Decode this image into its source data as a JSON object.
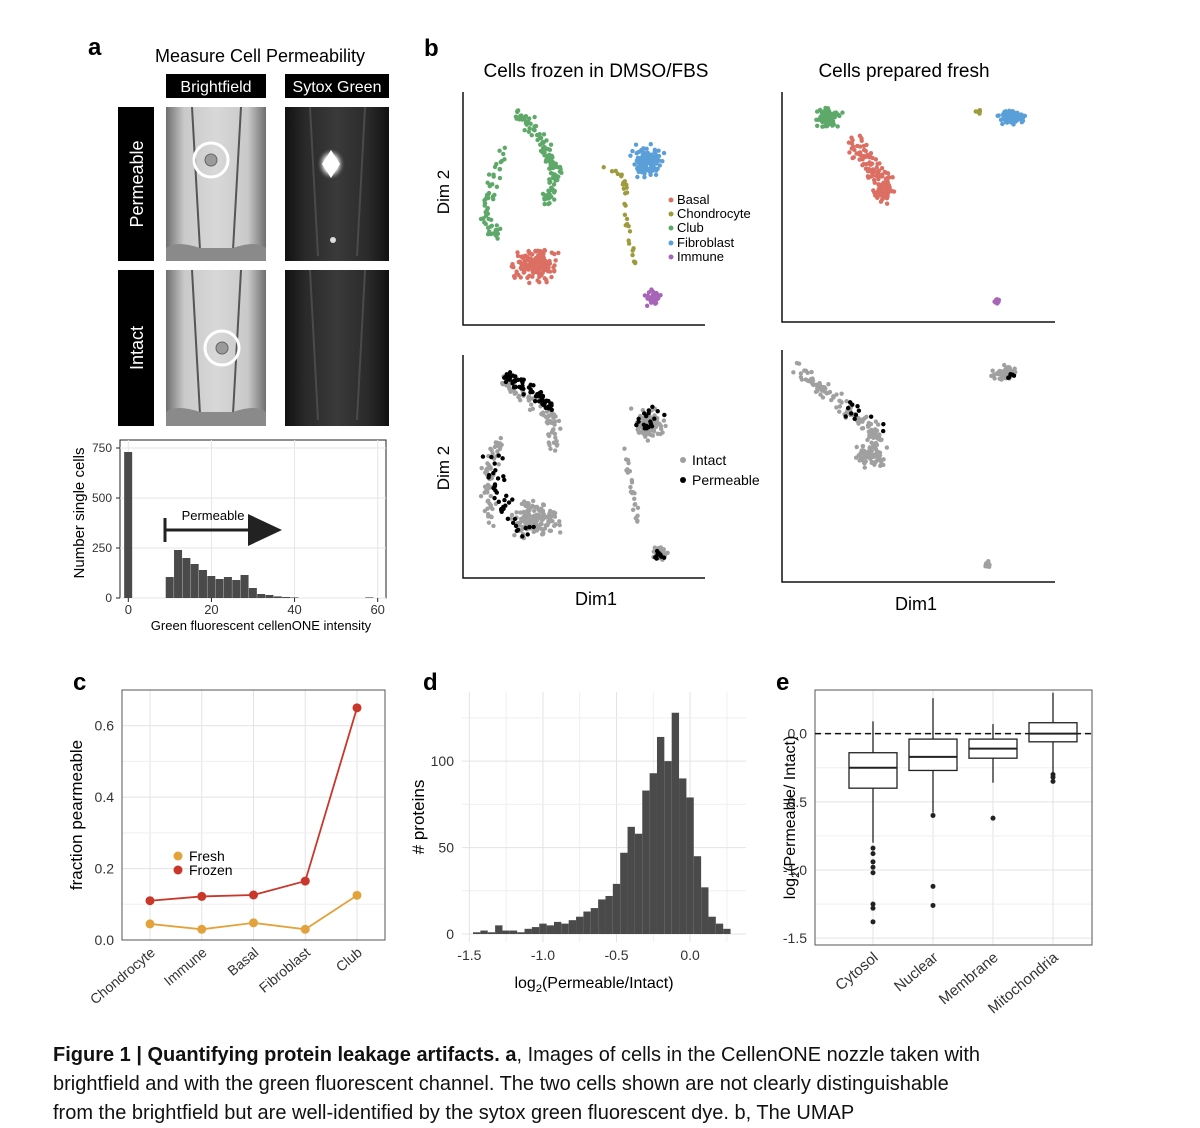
{
  "panel_a": {
    "letter": "a",
    "title": "Measure Cell Permeability",
    "col_labels": [
      "Brightfield",
      "Sytox Green"
    ],
    "row_labels": [
      "Permeable",
      "Intact"
    ],
    "hist": {
      "annotation": "Permeable",
      "ylabel": "Number single cells",
      "xlabel": "Green fluorescent cellenONE intensity"
    }
  },
  "panel_b": {
    "letter": "b",
    "col_titles": [
      "Cells frozen in DMSO/FBS",
      "Cells prepared fresh"
    ],
    "xlabel": "Dim1",
    "ylabel": "Dim 2",
    "cell_type_legend": [
      {
        "label": "Basal",
        "color": "#dc6f63"
      },
      {
        "label": "Chondrocyte",
        "color": "#9e9b3c"
      },
      {
        "label": "Club",
        "color": "#5ea96a"
      },
      {
        "label": "Fibroblast",
        "color": "#5b9fd8"
      },
      {
        "label": "Immune",
        "color": "#a865b8"
      }
    ],
    "perm_legend": [
      {
        "label": "Intact",
        "color": "#a0a0a0"
      },
      {
        "label": "Permeable",
        "color": "#000000"
      }
    ]
  },
  "panel_c": {
    "letter": "c",
    "legend": [
      "Fresh",
      "Frozen"
    ]
  },
  "panel_d": {
    "letter": "d"
  },
  "panel_e": {
    "letter": "e"
  },
  "caption": {
    "bold": "Figure 1 | Quantifying protein leakage artifacts. a",
    "text1": ", Images of cells in the CellenONE nozzle taken with",
    "line2": "brightfield and with the green fluorescent channel. The two cells shown are not clearly distinguishable",
    "line3": "from the brightfield but are well-identified by the sytox green fluorescent dye. b, The UMAP"
  },
  "chart_data": [
    {
      "type": "bar",
      "title": "",
      "xlabel": "Green fluorescent cellenONE intensity",
      "ylabel": "Number single cells",
      "x_ticks": [
        0,
        20,
        40,
        60
      ],
      "y_ticks": [
        0,
        250,
        500,
        750
      ],
      "xlim": [
        -2,
        62
      ],
      "ylim": [
        0,
        750
      ],
      "bin_width": 2,
      "bins": [
        {
          "x": 0,
          "value": 730
        },
        {
          "x": 2,
          "value": 0
        },
        {
          "x": 4,
          "value": 0
        },
        {
          "x": 6,
          "value": 0
        },
        {
          "x": 8,
          "value": 0
        },
        {
          "x": 10,
          "value": 105
        },
        {
          "x": 12,
          "value": 240
        },
        {
          "x": 14,
          "value": 200
        },
        {
          "x": 16,
          "value": 170
        },
        {
          "x": 18,
          "value": 140
        },
        {
          "x": 20,
          "value": 110
        },
        {
          "x": 22,
          "value": 95
        },
        {
          "x": 24,
          "value": 105
        },
        {
          "x": 26,
          "value": 90
        },
        {
          "x": 28,
          "value": 115
        },
        {
          "x": 30,
          "value": 50
        },
        {
          "x": 32,
          "value": 20
        },
        {
          "x": 34,
          "value": 15
        },
        {
          "x": 36,
          "value": 8
        },
        {
          "x": 38,
          "value": 5
        },
        {
          "x": 40,
          "value": 3
        },
        {
          "x": 58,
          "value": 3
        }
      ]
    },
    {
      "type": "line",
      "title": "",
      "xlabel": "",
      "ylabel": "fraction pearmeable",
      "categories": [
        "Chondrocyte",
        "Immune",
        "Basal",
        "Fibroblast",
        "Club"
      ],
      "ylim": [
        0,
        0.7
      ],
      "y_ticks": [
        0.0,
        0.2,
        0.4,
        0.6
      ],
      "series": [
        {
          "name": "Fresh",
          "color": "#e3a33c",
          "values": [
            0.045,
            0.03,
            0.048,
            0.03,
            0.125
          ]
        },
        {
          "name": "Frozen",
          "color": "#c9362a",
          "values": [
            0.11,
            0.122,
            0.126,
            0.165,
            0.65
          ]
        }
      ]
    },
    {
      "type": "bar",
      "title": "",
      "xlabel": "log2(Permeable/Intact)",
      "ylabel": "# proteins",
      "x_ticks": [
        -1.5,
        -1.0,
        -0.5,
        0.0
      ],
      "y_ticks": [
        0,
        50,
        100
      ],
      "xlim": [
        -1.55,
        0.38
      ],
      "ylim": [
        0,
        140
      ],
      "bin_width": 0.05,
      "bins": [
        {
          "x": -1.45,
          "value": 1
        },
        {
          "x": -1.4,
          "value": 2
        },
        {
          "x": -1.35,
          "value": 1
        },
        {
          "x": -1.3,
          "value": 5
        },
        {
          "x": -1.25,
          "value": 2
        },
        {
          "x": -1.2,
          "value": 2
        },
        {
          "x": -1.15,
          "value": 1
        },
        {
          "x": -1.1,
          "value": 3
        },
        {
          "x": -1.05,
          "value": 4
        },
        {
          "x": -1.0,
          "value": 6
        },
        {
          "x": -0.95,
          "value": 5
        },
        {
          "x": -0.9,
          "value": 7
        },
        {
          "x": -0.85,
          "value": 6
        },
        {
          "x": -0.8,
          "value": 8
        },
        {
          "x": -0.75,
          "value": 10
        },
        {
          "x": -0.7,
          "value": 13
        },
        {
          "x": -0.65,
          "value": 15
        },
        {
          "x": -0.6,
          "value": 20
        },
        {
          "x": -0.55,
          "value": 22
        },
        {
          "x": -0.5,
          "value": 29
        },
        {
          "x": -0.45,
          "value": 47
        },
        {
          "x": -0.4,
          "value": 62
        },
        {
          "x": -0.35,
          "value": 58
        },
        {
          "x": -0.3,
          "value": 83
        },
        {
          "x": -0.25,
          "value": 93
        },
        {
          "x": -0.2,
          "value": 114
        },
        {
          "x": -0.15,
          "value": 100
        },
        {
          "x": -0.1,
          "value": 128
        },
        {
          "x": -0.05,
          "value": 90
        },
        {
          "x": 0.0,
          "value": 79
        },
        {
          "x": 0.05,
          "value": 45
        },
        {
          "x": 0.1,
          "value": 27
        },
        {
          "x": 0.15,
          "value": 10
        },
        {
          "x": 0.2,
          "value": 6
        },
        {
          "x": 0.25,
          "value": 3
        }
      ]
    },
    {
      "type": "box",
      "title": "",
      "xlabel": "",
      "ylabel": "log2(Permeable/ Intact)",
      "categories": [
        "Cytosol",
        "Nuclear",
        "Membrane",
        "Mitochondria"
      ],
      "ylim": [
        -1.55,
        0.32
      ],
      "y_ticks": [
        0.0,
        -0.5,
        -1.0,
        -1.5
      ],
      "reference_line": 0.0,
      "boxes": [
        {
          "low": -0.8,
          "q1": -0.4,
          "median": -0.25,
          "q3": -0.14,
          "high": 0.09,
          "outliers": [
            -0.84,
            -0.88,
            -0.94,
            -0.98,
            -1.02,
            -1.25,
            -1.28,
            -1.38
          ]
        },
        {
          "low": -0.58,
          "q1": -0.27,
          "median": -0.17,
          "q3": -0.04,
          "high": 0.26,
          "outliers": [
            -0.6,
            -1.12,
            -1.26
          ]
        },
        {
          "low": -0.36,
          "q1": -0.18,
          "median": -0.11,
          "q3": -0.04,
          "high": 0.07,
          "outliers": [
            -0.62
          ]
        },
        {
          "low": -0.34,
          "q1": -0.06,
          "median": 0.0,
          "q3": 0.08,
          "high": 0.3,
          "outliers": [
            -0.3,
            -0.32,
            -0.35
          ]
        }
      ]
    }
  ]
}
